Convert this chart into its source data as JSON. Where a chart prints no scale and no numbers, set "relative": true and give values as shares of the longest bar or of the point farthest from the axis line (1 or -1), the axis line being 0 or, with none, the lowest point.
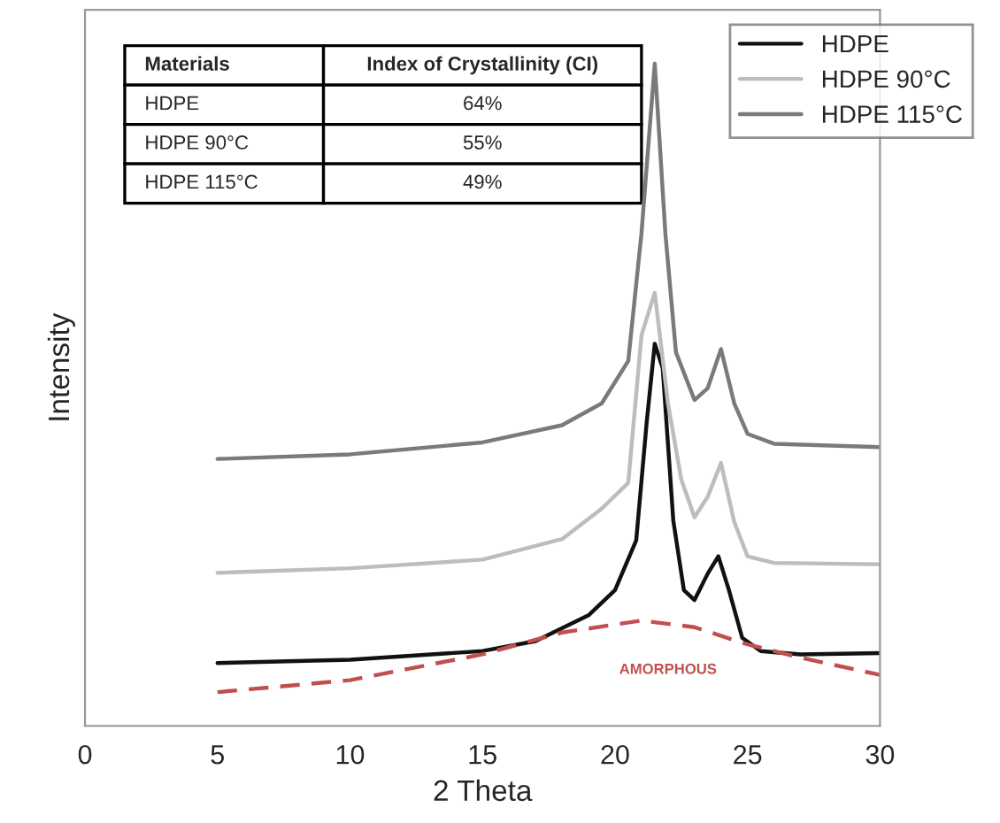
{
  "chart_data": {
    "type": "line",
    "relative": true,
    "xlabel": "2 Theta",
    "ylabel": "Intensity",
    "xlim": [
      0,
      30
    ],
    "xticks": [
      0,
      5,
      10,
      15,
      20,
      25,
      30
    ],
    "legend": "top right",
    "grid": false,
    "line_style": "solid",
    "series": [
      {
        "name": "HDPE",
        "color": "#111111",
        "x": [
          5,
          10,
          15,
          17,
          19,
          20,
          20.8,
          21.2,
          21.5,
          21.8,
          22.2,
          22.6,
          23,
          23.5,
          23.9,
          24.3,
          24.8,
          25.5,
          27,
          30
        ],
        "values": [
          0.095,
          0.1,
          0.113,
          0.128,
          0.167,
          0.205,
          0.28,
          0.46,
          0.577,
          0.54,
          0.31,
          0.205,
          0.19,
          0.23,
          0.256,
          0.205,
          0.133,
          0.113,
          0.108,
          0.11
        ]
      },
      {
        "name": "HDPE 90°C",
        "color": "#bdbdbd",
        "x": [
          5,
          10,
          15,
          18,
          19.5,
          20.5,
          21,
          21.5,
          22,
          22.5,
          23,
          23.5,
          24,
          24.5,
          25,
          26,
          30
        ],
        "values": [
          0.231,
          0.238,
          0.251,
          0.282,
          0.328,
          0.367,
          0.59,
          0.654,
          0.487,
          0.372,
          0.315,
          0.346,
          0.397,
          0.308,
          0.256,
          0.246,
          0.244
        ]
      },
      {
        "name": "HDPE 115°C",
        "color": "#7a7a7a",
        "x": [
          5,
          10,
          15,
          18,
          19.5,
          20.5,
          21,
          21.5,
          21.9,
          22.3,
          23,
          23.5,
          24,
          24.5,
          25,
          26,
          30
        ],
        "values": [
          0.403,
          0.41,
          0.428,
          0.454,
          0.487,
          0.551,
          0.744,
          1.0,
          0.744,
          0.564,
          0.492,
          0.51,
          0.569,
          0.487,
          0.441,
          0.426,
          0.421
        ]
      },
      {
        "color": "#c0504d",
        "line_style": "dashed",
        "x": [
          5,
          10,
          15,
          18,
          21,
          23,
          25,
          27,
          30
        ],
        "values": [
          0.051,
          0.069,
          0.108,
          0.141,
          0.159,
          0.149,
          0.123,
          0.103,
          0.077
        ]
      }
    ],
    "annotations": [
      "AMORPHOUS",
      "Materials",
      "Index of Crystallinity (CI)",
      "HDPE",
      "64%",
      "HDPE 90°C",
      "55%",
      "HDPE 115°C",
      "49%"
    ]
  }
}
